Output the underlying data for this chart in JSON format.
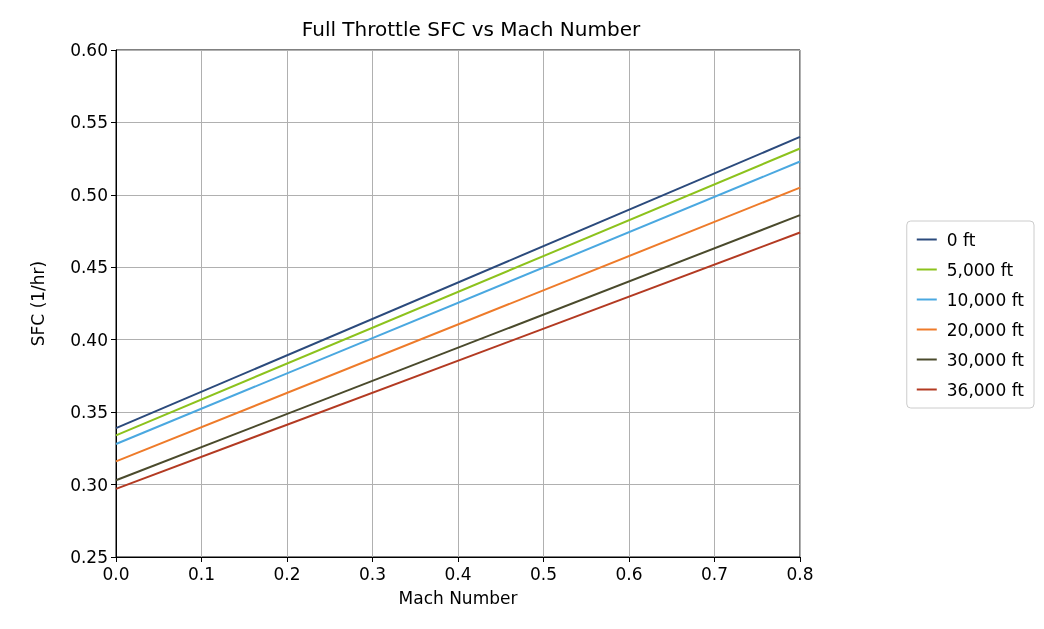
{
  "chart_data": {
    "type": "line",
    "title": "Full Throttle SFC vs Mach Number",
    "xlabel": "Mach Number",
    "ylabel": "SFC (1/hr)",
    "x": [
      0,
      0.8
    ],
    "series": [
      {
        "name": "0 ft",
        "color": "#2b4a7c",
        "values": [
          0.339,
          0.54
        ]
      },
      {
        "name": "5,000 ft",
        "color": "#8cc21c",
        "values": [
          0.334,
          0.532
        ]
      },
      {
        "name": "10,000 ft",
        "color": "#4aa8e0",
        "values": [
          0.328,
          0.523
        ]
      },
      {
        "name": "20,000 ft",
        "color": "#ee7b2a",
        "values": [
          0.316,
          0.505
        ]
      },
      {
        "name": "30,000 ft",
        "color": "#4a4a2c",
        "values": [
          0.303,
          0.486
        ]
      },
      {
        "name": "36,000 ft",
        "color": "#b33a22",
        "values": [
          0.297,
          0.474
        ]
      }
    ],
    "xlim": [
      0,
      0.8
    ],
    "xticks": [
      {
        "value": 0,
        "label": "0.0"
      },
      0.1,
      0.2,
      0.3,
      0.4,
      0.5,
      0.6,
      0.7,
      0.8
    ],
    "ylim": [
      0.25,
      0.6
    ],
    "yticks": [
      0.25,
      {
        "value": 0.3,
        "label": "0.30"
      },
      0.35,
      {
        "value": 0.4,
        "label": "0.40"
      },
      0.45,
      {
        "value": 0.5,
        "label": "0.50"
      },
      0.55,
      {
        "value": 0.6,
        "label": "0.60"
      }
    ],
    "grid": true,
    "legend": "right",
    "marker": "none",
    "line_style": "solid"
  }
}
